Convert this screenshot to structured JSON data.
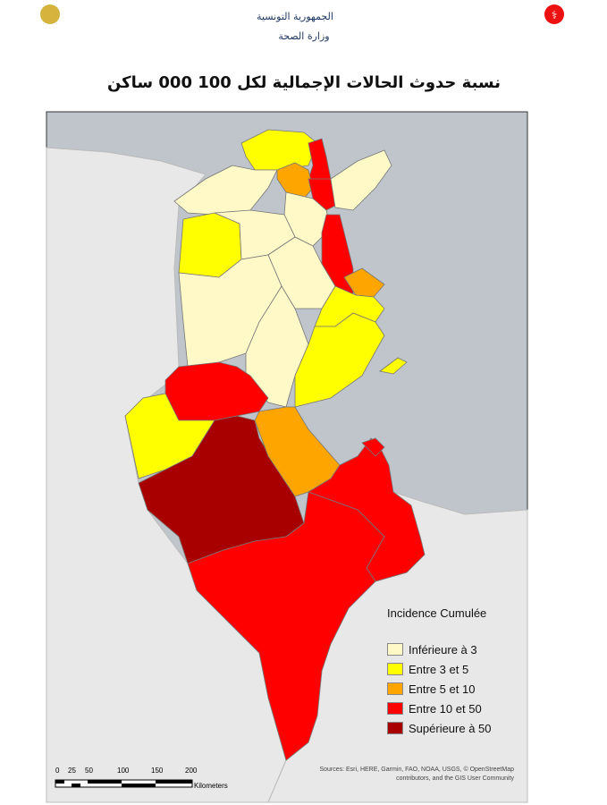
{
  "header": {
    "country": "الجمهورية التونسية",
    "ministry": "وزارة الصحة",
    "title": "نسبة حدوث الحالات الإجمالية لكل 100 000 ساكن"
  },
  "legend": {
    "title": "Incidence Cumulée",
    "items": [
      {
        "label": "Inférieure à 3",
        "color": "#fff9c8"
      },
      {
        "label": "Entre 3 et 5",
        "color": "#ffff00"
      },
      {
        "label": "Entre 5 et 10",
        "color": "#ffa500"
      },
      {
        "label": "Entre 10 et 50",
        "color": "#ff0000"
      },
      {
        "label": "Supérieure à 50",
        "color": "#a80000"
      }
    ]
  },
  "scale": {
    "ticks": [
      "0",
      "25",
      "50",
      "100",
      "150",
      "200"
    ],
    "unit": "Kilometers"
  },
  "sources": {
    "line1": "Sources: Esri, HERE, Garmin, FAO, NOAA, USGS, © OpenStreetMap",
    "line2": "contributors, and the GIS User Community"
  }
}
